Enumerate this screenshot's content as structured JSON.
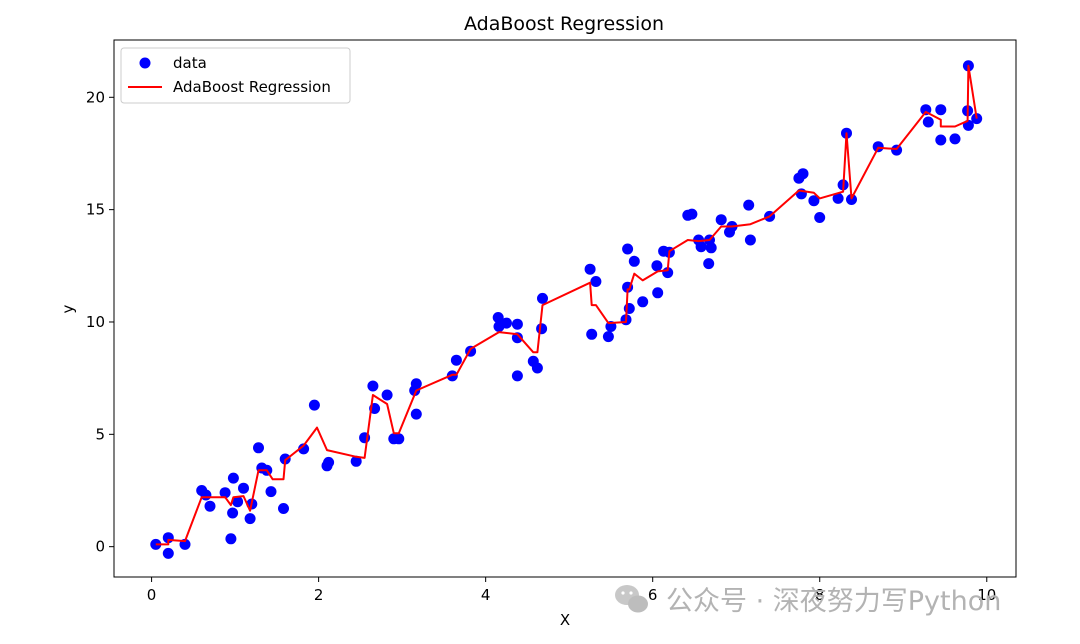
{
  "chart_data": {
    "type": "scatter",
    "title": "AdaBoost Regression",
    "xlabel": "X",
    "ylabel": "y",
    "xlim": [
      -0.45,
      10.35
    ],
    "ylim": [
      -1.35,
      22.55
    ],
    "xticks": [
      0,
      2,
      4,
      6,
      8,
      10
    ],
    "yticks": [
      0,
      5,
      10,
      15,
      20
    ],
    "grid": false,
    "legend_position": "top-left",
    "series": [
      {
        "name": "data",
        "kind": "scatter",
        "color": "#0000ff",
        "points": [
          [
            0.05,
            0.1
          ],
          [
            0.2,
            0.4
          ],
          [
            0.2,
            -0.3
          ],
          [
            0.4,
            0.1
          ],
          [
            0.6,
            2.5
          ],
          [
            0.65,
            2.3
          ],
          [
            0.7,
            1.8
          ],
          [
            0.88,
            2.4
          ],
          [
            0.95,
            0.35
          ],
          [
            0.97,
            1.5
          ],
          [
            0.98,
            3.05
          ],
          [
            1.03,
            2.0
          ],
          [
            1.1,
            2.6
          ],
          [
            1.18,
            1.25
          ],
          [
            1.2,
            1.9
          ],
          [
            1.28,
            4.4
          ],
          [
            1.32,
            3.5
          ],
          [
            1.38,
            3.4
          ],
          [
            1.43,
            2.45
          ],
          [
            1.58,
            1.7
          ],
          [
            1.6,
            3.9
          ],
          [
            1.82,
            4.35
          ],
          [
            1.95,
            6.3
          ],
          [
            2.1,
            3.6
          ],
          [
            2.12,
            3.75
          ],
          [
            2.45,
            3.8
          ],
          [
            2.55,
            4.85
          ],
          [
            2.65,
            7.15
          ],
          [
            2.67,
            6.15
          ],
          [
            2.82,
            6.75
          ],
          [
            2.9,
            4.8
          ],
          [
            2.96,
            4.8
          ],
          [
            3.15,
            6.95
          ],
          [
            3.17,
            7.25
          ],
          [
            3.17,
            5.9
          ],
          [
            3.6,
            7.6
          ],
          [
            3.65,
            8.3
          ],
          [
            3.82,
            8.7
          ],
          [
            4.15,
            10.2
          ],
          [
            4.16,
            9.8
          ],
          [
            4.25,
            9.95
          ],
          [
            4.38,
            9.9
          ],
          [
            4.38,
            9.3
          ],
          [
            4.38,
            7.6
          ],
          [
            4.57,
            8.25
          ],
          [
            4.62,
            7.95
          ],
          [
            4.67,
            9.7
          ],
          [
            4.68,
            11.05
          ],
          [
            5.25,
            12.35
          ],
          [
            5.27,
            9.45
          ],
          [
            5.32,
            11.8
          ],
          [
            5.47,
            9.35
          ],
          [
            5.5,
            9.8
          ],
          [
            5.68,
            10.1
          ],
          [
            5.7,
            13.25
          ],
          [
            5.7,
            11.55
          ],
          [
            5.72,
            10.6
          ],
          [
            5.78,
            12.7
          ],
          [
            5.88,
            10.9
          ],
          [
            6.05,
            12.5
          ],
          [
            6.06,
            11.3
          ],
          [
            6.13,
            13.15
          ],
          [
            6.18,
            12.2
          ],
          [
            6.2,
            13.1
          ],
          [
            6.42,
            14.75
          ],
          [
            6.47,
            14.8
          ],
          [
            6.55,
            13.65
          ],
          [
            6.58,
            13.35
          ],
          [
            6.67,
            12.6
          ],
          [
            6.68,
            13.65
          ],
          [
            6.7,
            13.3
          ],
          [
            6.82,
            14.55
          ],
          [
            6.92,
            14.0
          ],
          [
            6.95,
            14.25
          ],
          [
            7.15,
            15.2
          ],
          [
            7.17,
            13.65
          ],
          [
            7.4,
            14.7
          ],
          [
            7.75,
            16.4
          ],
          [
            7.78,
            15.7
          ],
          [
            7.8,
            16.6
          ],
          [
            7.93,
            15.4
          ],
          [
            8.0,
            14.65
          ],
          [
            8.22,
            15.5
          ],
          [
            8.28,
            16.1
          ],
          [
            8.32,
            18.4
          ],
          [
            8.38,
            15.45
          ],
          [
            8.7,
            17.8
          ],
          [
            8.92,
            17.65
          ],
          [
            9.27,
            19.45
          ],
          [
            9.3,
            18.9
          ],
          [
            9.45,
            19.45
          ],
          [
            9.45,
            18.1
          ],
          [
            9.62,
            18.15
          ],
          [
            9.77,
            19.4
          ],
          [
            9.78,
            21.4
          ],
          [
            9.78,
            18.75
          ],
          [
            9.88,
            19.05
          ]
        ]
      },
      {
        "name": "AdaBoost Regression",
        "kind": "line",
        "color": "#ff0000",
        "points": [
          [
            0.05,
            0.1
          ],
          [
            0.2,
            0.1
          ],
          [
            0.2,
            0.3
          ],
          [
            0.4,
            0.25
          ],
          [
            0.6,
            2.2
          ],
          [
            0.88,
            2.2
          ],
          [
            0.95,
            1.85
          ],
          [
            0.98,
            2.2
          ],
          [
            1.1,
            2.25
          ],
          [
            1.18,
            1.6
          ],
          [
            1.28,
            3.4
          ],
          [
            1.38,
            3.4
          ],
          [
            1.45,
            3.0
          ],
          [
            1.58,
            3.0
          ],
          [
            1.6,
            3.85
          ],
          [
            1.82,
            4.5
          ],
          [
            1.98,
            5.3
          ],
          [
            2.1,
            4.3
          ],
          [
            2.45,
            4.0
          ],
          [
            2.55,
            3.95
          ],
          [
            2.65,
            6.75
          ],
          [
            2.82,
            6.35
          ],
          [
            2.9,
            5.05
          ],
          [
            2.96,
            5.05
          ],
          [
            3.17,
            6.95
          ],
          [
            3.6,
            7.65
          ],
          [
            3.65,
            7.65
          ],
          [
            3.82,
            8.8
          ],
          [
            4.16,
            9.55
          ],
          [
            4.38,
            9.45
          ],
          [
            4.57,
            8.65
          ],
          [
            4.62,
            8.65
          ],
          [
            4.68,
            10.75
          ],
          [
            5.25,
            11.75
          ],
          [
            5.27,
            10.75
          ],
          [
            5.32,
            10.75
          ],
          [
            5.47,
            9.95
          ],
          [
            5.68,
            10.0
          ],
          [
            5.7,
            11.45
          ],
          [
            5.72,
            11.45
          ],
          [
            5.78,
            12.15
          ],
          [
            5.88,
            11.85
          ],
          [
            6.06,
            12.25
          ],
          [
            6.18,
            12.3
          ],
          [
            6.2,
            13.15
          ],
          [
            6.42,
            13.65
          ],
          [
            6.55,
            13.6
          ],
          [
            6.68,
            13.65
          ],
          [
            6.82,
            14.25
          ],
          [
            6.95,
            14.25
          ],
          [
            7.17,
            14.35
          ],
          [
            7.4,
            14.7
          ],
          [
            7.75,
            15.85
          ],
          [
            7.93,
            15.75
          ],
          [
            8.0,
            15.5
          ],
          [
            8.28,
            15.8
          ],
          [
            8.32,
            18.4
          ],
          [
            8.38,
            15.5
          ],
          [
            8.7,
            17.75
          ],
          [
            8.92,
            17.7
          ],
          [
            9.27,
            19.35
          ],
          [
            9.45,
            19.0
          ],
          [
            9.45,
            18.7
          ],
          [
            9.62,
            18.7
          ],
          [
            9.77,
            18.95
          ],
          [
            9.78,
            21.4
          ],
          [
            9.88,
            19.05
          ]
        ]
      }
    ]
  },
  "watermark": {
    "text": "公众号 · 深夜努力写Python",
    "icon": "wechat-icon"
  }
}
